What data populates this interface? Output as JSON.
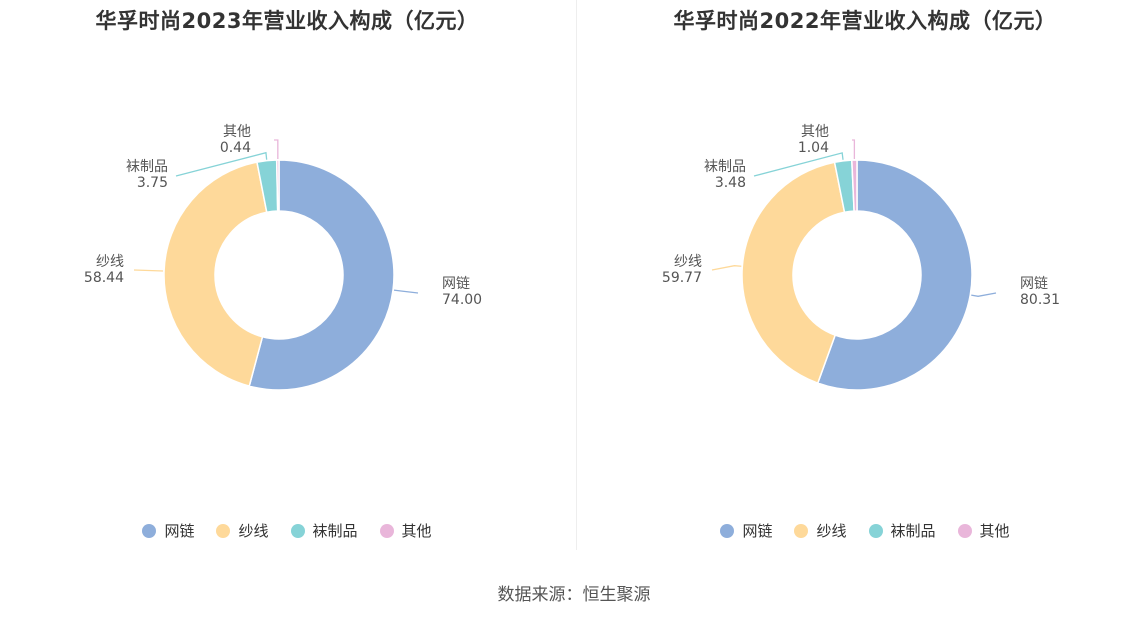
{
  "colors": {
    "网链": "#8eaedb",
    "纱线": "#fed99a",
    "袜制品": "#86d3d7",
    "其他": "#e9b6da"
  },
  "source_text": "数据来源：恒生聚源",
  "chart_data": [
    {
      "type": "pie",
      "title": "华孚时尚2023年营业收入构成（亿元）",
      "labels": [
        "网链",
        "纱线",
        "袜制品",
        "其他"
      ],
      "values": [
        74.0,
        58.44,
        3.75,
        0.44
      ],
      "value_text": [
        "74.00",
        "58.44",
        "3.75",
        "0.44"
      ],
      "donut": true,
      "legend": [
        "网链",
        "纱线",
        "袜制品",
        "其他"
      ],
      "legend_position": "bottom"
    },
    {
      "type": "pie",
      "title": "华孚时尚2022年营业收入构成（亿元）",
      "labels": [
        "网链",
        "纱线",
        "袜制品",
        "其他"
      ],
      "values": [
        80.31,
        59.77,
        3.48,
        1.04
      ],
      "value_text": [
        "80.31",
        "59.77",
        "3.48",
        "1.04"
      ],
      "donut": true,
      "legend": [
        "网链",
        "纱线",
        "袜制品",
        "其他"
      ],
      "legend_position": "bottom"
    }
  ]
}
